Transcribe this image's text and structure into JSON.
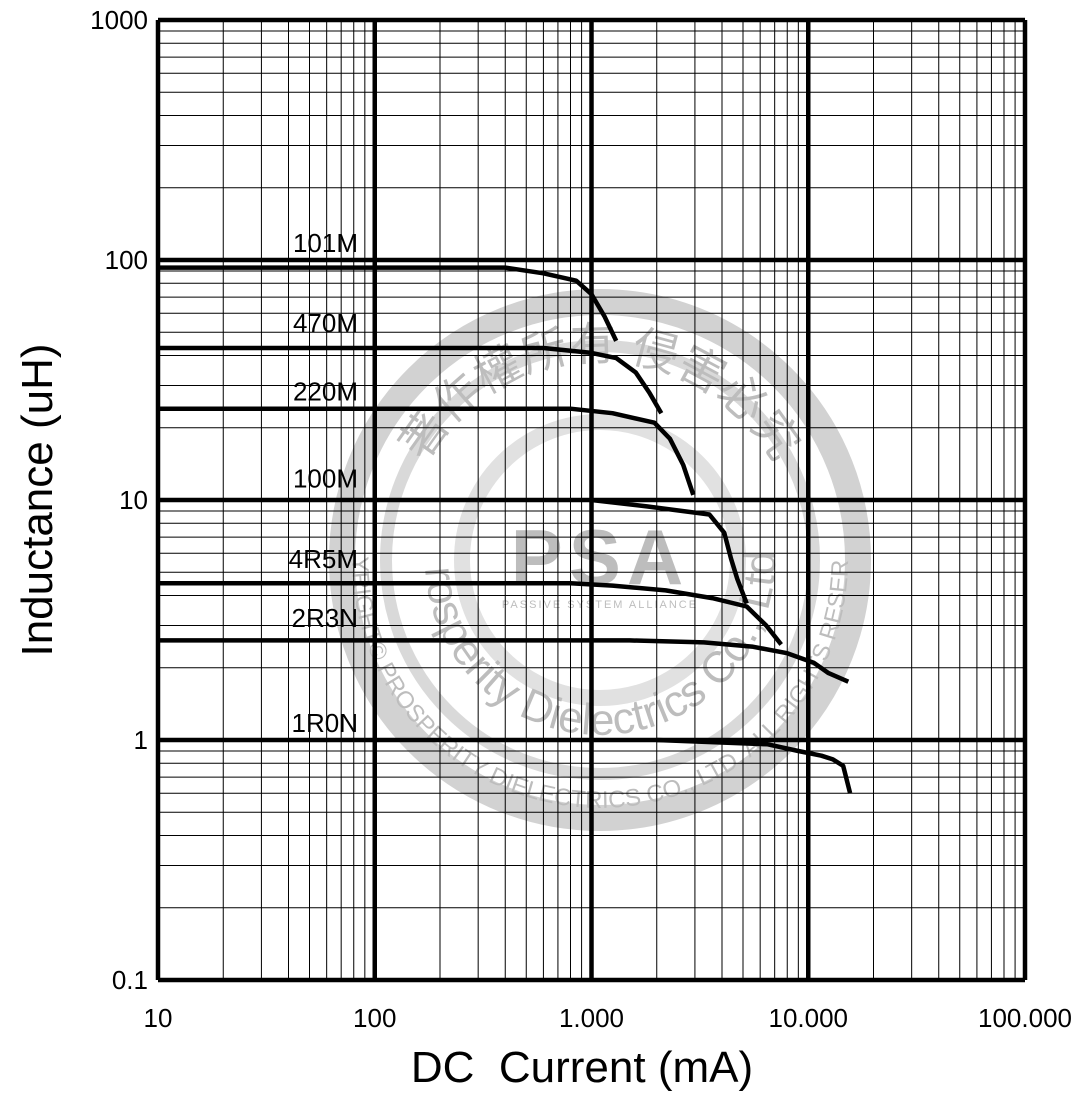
{
  "chart_data": {
    "type": "line",
    "title": "",
    "xlabel": "DC  Current (mA)",
    "ylabel": "Inductance (uH)",
    "x_scale": "log",
    "y_scale": "log",
    "xlim": [
      10,
      100000
    ],
    "ylim": [
      0.1,
      1000
    ],
    "grid": true,
    "x_ticks": [
      {
        "value": 10,
        "label": "10"
      },
      {
        "value": 100,
        "label": "100"
      },
      {
        "value": 1000,
        "label": "1.000"
      },
      {
        "value": 10000,
        "label": "10.000"
      },
      {
        "value": 100000,
        "label": "100.000"
      }
    ],
    "y_ticks": [
      {
        "value": 0.1,
        "label": "0.1"
      },
      {
        "value": 1,
        "label": "1"
      },
      {
        "value": 10,
        "label": "10"
      },
      {
        "value": 100,
        "label": "100"
      },
      {
        "value": 1000,
        "label": "1000"
      }
    ],
    "series": [
      {
        "name": "101M",
        "label_at": [
          10,
          108
        ],
        "points": [
          [
            10,
            93
          ],
          [
            400,
            93
          ],
          [
            600,
            88
          ],
          [
            850,
            82
          ],
          [
            1000,
            72
          ],
          [
            1150,
            58
          ],
          [
            1300,
            46
          ]
        ]
      },
      {
        "name": "470M",
        "label_at": [
          10,
          50
        ],
        "points": [
          [
            10,
            43
          ],
          [
            600,
            43
          ],
          [
            1000,
            41
          ],
          [
            1300,
            39
          ],
          [
            1600,
            34
          ],
          [
            1850,
            28
          ],
          [
            2100,
            23
          ]
        ]
      },
      {
        "name": "220M",
        "label_at": [
          10,
          26
        ],
        "points": [
          [
            10,
            24
          ],
          [
            800,
            24
          ],
          [
            1250,
            23
          ],
          [
            1950,
            21
          ],
          [
            2300,
            18
          ],
          [
            2650,
            14
          ],
          [
            2950,
            10.5
          ]
        ]
      },
      {
        "name": "100M",
        "label_at": [
          10,
          11.3
        ],
        "points": [
          [
            1000,
            10
          ],
          [
            1800,
            9.4
          ],
          [
            3500,
            8.7
          ],
          [
            4100,
            7.3
          ],
          [
            4400,
            5.7
          ],
          [
            4700,
            4.7
          ],
          [
            5200,
            3.7
          ]
        ]
      },
      {
        "name": "4R5M",
        "label_at": [
          10,
          5.2
        ],
        "points": [
          [
            10,
            4.5
          ],
          [
            800,
            4.5
          ],
          [
            1250,
            4.4
          ],
          [
            2200,
            4.2
          ],
          [
            3600,
            3.9
          ],
          [
            5200,
            3.6
          ],
          [
            6400,
            3.0
          ],
          [
            7500,
            2.5
          ]
        ]
      },
      {
        "name": "2R3N",
        "label_at": [
          10,
          2.95
        ],
        "points": [
          [
            10,
            2.6
          ],
          [
            1500,
            2.6
          ],
          [
            3300,
            2.55
          ],
          [
            5500,
            2.45
          ],
          [
            8000,
            2.3
          ],
          [
            10600,
            2.1
          ],
          [
            12400,
            1.9
          ],
          [
            15300,
            1.75
          ]
        ]
      },
      {
        "name": "1R0N",
        "label_at": [
          10,
          1.08
        ],
        "points": [
          [
            2000,
            1.0
          ],
          [
            6500,
            0.96
          ],
          [
            9000,
            0.9
          ],
          [
            11500,
            0.86
          ],
          [
            13000,
            0.83
          ],
          [
            14500,
            0.78
          ],
          [
            15600,
            0.6
          ]
        ]
      }
    ]
  },
  "watermark": {
    "logo": "PSA",
    "subtitle": "PASSIVE SYSTEM ALLIANCE",
    "arc_top": "著作權所有 侵害必究",
    "ring_inner": "Prosperity Dielectrics Co., Ltd.",
    "ring_outer": "COPYRIGHT© PROSPERITY DIELECTRICS CO., LTD. ALL RIGHTS RESERVED."
  }
}
